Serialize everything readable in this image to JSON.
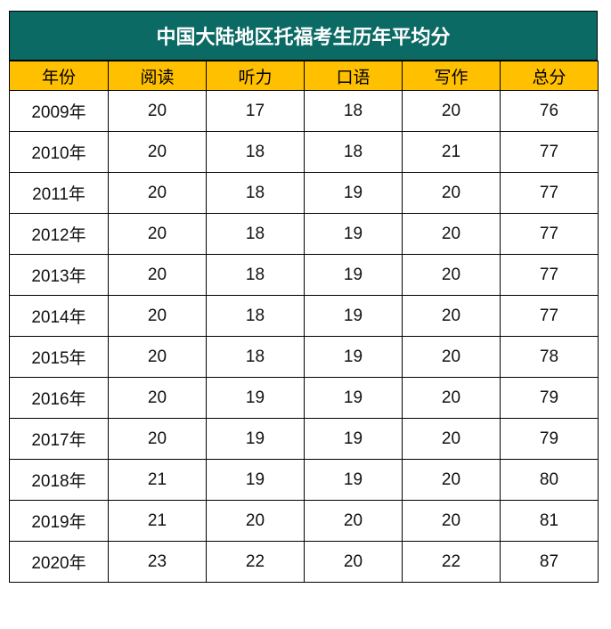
{
  "title": "中国大陆地区托福考生历年平均分",
  "columns": [
    "年份",
    "阅读",
    "听力",
    "口语",
    "写作",
    "总分"
  ],
  "rows": [
    [
      "2009年",
      "20",
      "17",
      "18",
      "20",
      "76"
    ],
    [
      "2010年",
      "20",
      "18",
      "18",
      "21",
      "77"
    ],
    [
      "2011年",
      "20",
      "18",
      "19",
      "20",
      "77"
    ],
    [
      "2012年",
      "20",
      "18",
      "19",
      "20",
      "77"
    ],
    [
      "2013年",
      "20",
      "18",
      "19",
      "20",
      "77"
    ],
    [
      "2014年",
      "20",
      "18",
      "19",
      "20",
      "77"
    ],
    [
      "2015年",
      "20",
      "18",
      "19",
      "20",
      "78"
    ],
    [
      "2016年",
      "20",
      "19",
      "19",
      "20",
      "79"
    ],
    [
      "2017年",
      "20",
      "19",
      "19",
      "20",
      "79"
    ],
    [
      "2018年",
      "21",
      "19",
      "19",
      "20",
      "80"
    ],
    [
      "2019年",
      "21",
      "20",
      "20",
      "20",
      "81"
    ],
    [
      "2020年",
      "23",
      "22",
      "20",
      "22",
      "87"
    ]
  ],
  "colors": {
    "title_bg": "#0b6a64",
    "header_bg": "#ffc000"
  }
}
